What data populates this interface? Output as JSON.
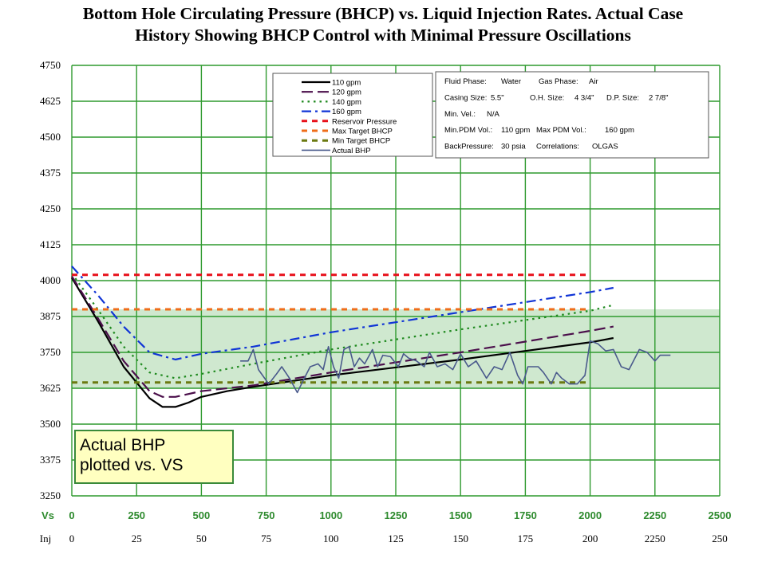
{
  "title": {
    "line1": "Bottom Hole Circulating Pressure (BHCP) vs. Liquid Injection Rates. Actual Case",
    "line2": "History Showing BHCP Control with Minimal Pressure Oscillations"
  },
  "colors": {
    "grid": "#2f9a2f",
    "band": "#cfe8cf",
    "q110": "#000000",
    "q120": "#4b0f4b",
    "q140": "#1f8a1f",
    "q160": "#1034d6",
    "reservoir": "#e8101a",
    "max_target": "#ef6d1a",
    "min_target": "#6b7a12",
    "actual": "#4a5a8c"
  },
  "annotation": {
    "line1": "Actual  BHP",
    "line2": "plotted vs. VS"
  },
  "info_box": {
    "rows": [
      [
        [
          "Fluid Phase:",
          "Water"
        ],
        [
          "Gas Phase:",
          "Air"
        ]
      ],
      [
        [
          "Casing Size:",
          "5.5\""
        ],
        [
          "O.H. Size:",
          "4 3/4\""
        ],
        [
          "D.P. Size:",
          "2 7/8\""
        ]
      ],
      [
        [
          "Min. Vel.:",
          "N/A"
        ]
      ],
      [
        [
          "Min.PDM Vol.:",
          "110 gpm"
        ],
        [
          "Max PDM Vol.:",
          "160 gpm"
        ]
      ],
      [
        [
          "BackPressure:",
          "30 psia"
        ],
        [
          "Correlations:",
          "OLGAS"
        ]
      ]
    ]
  },
  "chart_data": {
    "type": "line",
    "title": "Bottom Hole Circulating Pressure (BHCP) vs. Liquid Injection Rates. Actual Case History Showing BHCP Control with Minimal Pressure Oscillations",
    "ylim": [
      3250,
      4750
    ],
    "yticks": [
      "4750",
      "4625",
      "4500",
      "4375",
      "4250",
      "4125",
      "4000",
      "3875",
      "3750",
      "3625",
      "3500",
      "3375",
      "3250"
    ],
    "x_label": "Vs",
    "xlim": [
      0,
      2500
    ],
    "xticks": [
      "0",
      "250",
      "500",
      "750",
      "1000",
      "1250",
      "1500",
      "1750",
      "2000",
      "2250",
      "2500"
    ],
    "inj_label": "Inj",
    "inj_ticks": [
      "0",
      "25",
      "50",
      "75",
      "100",
      "125",
      "150",
      "175",
      "200",
      "2250",
      "250"
    ],
    "band": {
      "from": 3625,
      "to": 3900
    },
    "series": [
      {
        "name": "110 gpm",
        "style": "solid",
        "color_key": "q110",
        "points": [
          [
            0,
            4010
          ],
          [
            100,
            3860
          ],
          [
            200,
            3700
          ],
          [
            300,
            3590
          ],
          [
            350,
            3560
          ],
          [
            400,
            3560
          ],
          [
            450,
            3575
          ],
          [
            500,
            3595
          ],
          [
            600,
            3615
          ],
          [
            700,
            3630
          ],
          [
            1000,
            3670
          ],
          [
            1500,
            3725
          ],
          [
            2000,
            3785
          ],
          [
            2090,
            3800
          ]
        ]
      },
      {
        "name": "120 gpm",
        "style": "dash",
        "color_key": "q120",
        "points": [
          [
            0,
            4015
          ],
          [
            100,
            3870
          ],
          [
            200,
            3720
          ],
          [
            300,
            3615
          ],
          [
            350,
            3595
          ],
          [
            400,
            3595
          ],
          [
            500,
            3615
          ],
          [
            700,
            3635
          ],
          [
            1000,
            3680
          ],
          [
            1500,
            3750
          ],
          [
            2000,
            3825
          ],
          [
            2090,
            3840
          ]
        ]
      },
      {
        "name": "140 gpm",
        "style": "dot",
        "color_key": "q140",
        "points": [
          [
            0,
            4025
          ],
          [
            100,
            3900
          ],
          [
            200,
            3770
          ],
          [
            300,
            3680
          ],
          [
            400,
            3660
          ],
          [
            500,
            3675
          ],
          [
            700,
            3710
          ],
          [
            1000,
            3760
          ],
          [
            1500,
            3830
          ],
          [
            2000,
            3895
          ],
          [
            2090,
            3915
          ]
        ]
      },
      {
        "name": "160 gpm",
        "style": "dashdot",
        "color_key": "q160",
        "points": [
          [
            0,
            4050
          ],
          [
            100,
            3950
          ],
          [
            200,
            3840
          ],
          [
            300,
            3750
          ],
          [
            400,
            3725
          ],
          [
            500,
            3745
          ],
          [
            700,
            3770
          ],
          [
            1000,
            3820
          ],
          [
            1500,
            3890
          ],
          [
            2000,
            3960
          ],
          [
            2090,
            3975
          ]
        ]
      },
      {
        "name": "Reservoir Pressure",
        "style": "bigdash",
        "color_key": "reservoir",
        "points": [
          [
            0,
            4020
          ],
          [
            2000,
            4020
          ]
        ]
      },
      {
        "name": "Max Target BHCP",
        "style": "bigdash",
        "color_key": "max_target",
        "points": [
          [
            0,
            3900
          ],
          [
            2000,
            3900
          ]
        ]
      },
      {
        "name": "Min Target BHCP",
        "style": "bigdash",
        "color_key": "min_target",
        "points": [
          [
            0,
            3645
          ],
          [
            2000,
            3645
          ]
        ]
      },
      {
        "name": "Actual BHP",
        "style": "solid",
        "color_key": "actual",
        "points": [
          [
            650,
            3720
          ],
          [
            680,
            3720
          ],
          [
            700,
            3760
          ],
          [
            720,
            3690
          ],
          [
            760,
            3640
          ],
          [
            790,
            3675
          ],
          [
            810,
            3700
          ],
          [
            840,
            3660
          ],
          [
            870,
            3610
          ],
          [
            900,
            3665
          ],
          [
            920,
            3700
          ],
          [
            950,
            3710
          ],
          [
            970,
            3690
          ],
          [
            990,
            3770
          ],
          [
            1010,
            3700
          ],
          [
            1030,
            3660
          ],
          [
            1050,
            3760
          ],
          [
            1070,
            3770
          ],
          [
            1090,
            3700
          ],
          [
            1110,
            3730
          ],
          [
            1130,
            3710
          ],
          [
            1160,
            3760
          ],
          [
            1180,
            3700
          ],
          [
            1200,
            3740
          ],
          [
            1230,
            3735
          ],
          [
            1260,
            3700
          ],
          [
            1280,
            3745
          ],
          [
            1300,
            3730
          ],
          [
            1330,
            3720
          ],
          [
            1360,
            3700
          ],
          [
            1380,
            3750
          ],
          [
            1410,
            3700
          ],
          [
            1440,
            3710
          ],
          [
            1470,
            3690
          ],
          [
            1500,
            3745
          ],
          [
            1530,
            3700
          ],
          [
            1560,
            3720
          ],
          [
            1600,
            3660
          ],
          [
            1630,
            3700
          ],
          [
            1660,
            3690
          ],
          [
            1690,
            3750
          ],
          [
            1720,
            3670
          ],
          [
            1740,
            3640
          ],
          [
            1760,
            3700
          ],
          [
            1800,
            3700
          ],
          [
            1820,
            3680
          ],
          [
            1850,
            3640
          ],
          [
            1870,
            3680
          ],
          [
            1890,
            3660
          ],
          [
            1920,
            3640
          ],
          [
            1950,
            3640
          ],
          [
            1980,
            3670
          ],
          [
            2000,
            3790
          ],
          [
            2030,
            3780
          ],
          [
            2060,
            3755
          ],
          [
            2090,
            3760
          ],
          [
            2120,
            3700
          ],
          [
            2150,
            3690
          ],
          [
            2190,
            3760
          ],
          [
            2220,
            3750
          ],
          [
            2250,
            3720
          ],
          [
            2270,
            3740
          ],
          [
            2310,
            3740
          ]
        ]
      }
    ]
  }
}
